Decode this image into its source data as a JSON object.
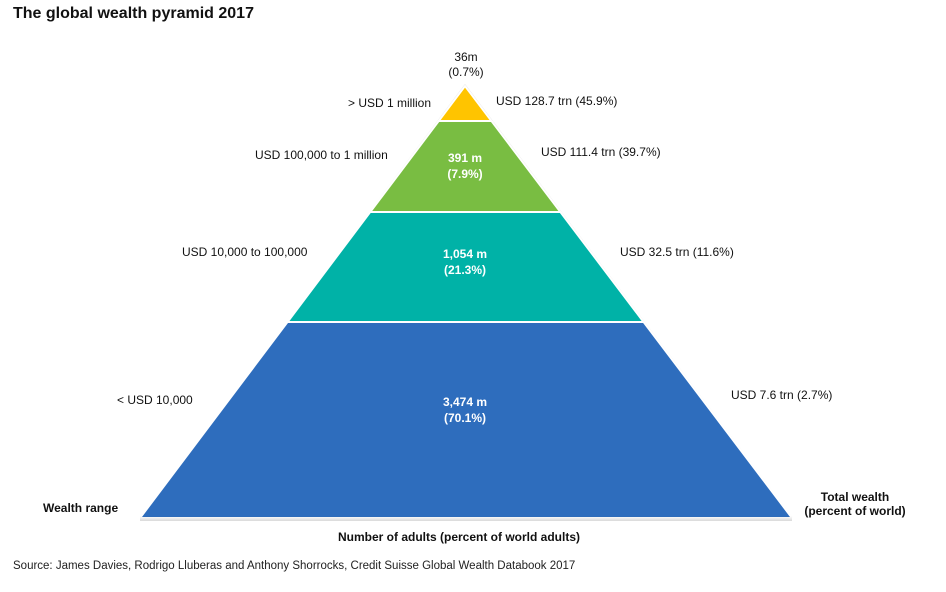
{
  "title": "The global wealth pyramid 2017",
  "chart_data": {
    "type": "pyramid",
    "tiers": [
      {
        "range": "< USD 10,000",
        "adults": "3,474 m",
        "adults_pct": "(70.1%)",
        "wealth": "USD 7.6 trn (2.7%)",
        "color": "#2e6dbd"
      },
      {
        "range": "USD 10,000  to 100,000",
        "adults": "1,054 m",
        "adults_pct": "(21.3%)",
        "wealth": "USD 32.5 trn (11.6%)",
        "color": "#00b2a7"
      },
      {
        "range": "USD 100,000  to 1 million",
        "adults": "391 m",
        "adults_pct": "(7.9%)",
        "wealth": "USD 111.4 trn (39.7%)",
        "color": "#79bd42"
      },
      {
        "range": ">  USD 1 million",
        "adults": "36m",
        "adults_pct": "(0.7%)",
        "wealth": "USD 128.7 trn (45.9%)",
        "color": "#ffc400"
      }
    ],
    "left_axis_label": "Wealth range",
    "right_axis_label_line1": "Total wealth",
    "right_axis_label_line2": "(percent of world)",
    "bottom_axis_label": "Number of adults (percent of world adults)"
  },
  "source": "Source: James Davies, Rodrigo Lluberas and Anthony Shorrocks, Credit Suisse Global Wealth Databook 2017"
}
